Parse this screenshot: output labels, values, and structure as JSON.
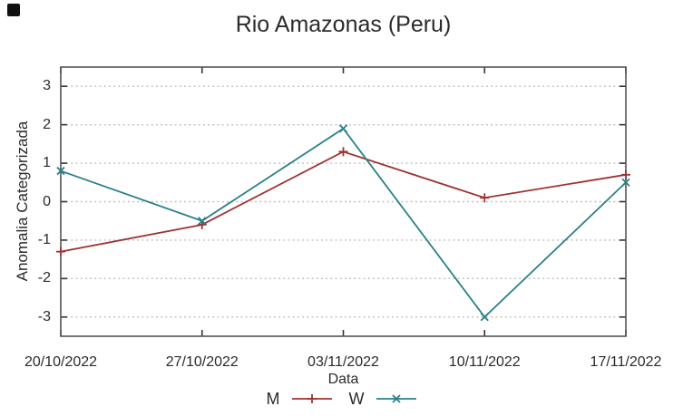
{
  "figure": {
    "background": "#ffffff",
    "corner_dot_color": "#111111"
  },
  "chart_data": {
    "type": "line",
    "title": "Rio Amazonas (Peru)",
    "xlabel": "Data",
    "ylabel": "Anomalia Categorizada",
    "categories": [
      "20/10/2022",
      "27/10/2022",
      "03/11/2022",
      "10/11/2022",
      "17/11/2022"
    ],
    "series": [
      {
        "name": "M",
        "marker": "plus",
        "color": "#a03232",
        "values": [
          -1.3,
          -0.6,
          1.3,
          0.1,
          0.7
        ]
      },
      {
        "name": "W",
        "marker": "cross",
        "color": "#2a8088",
        "values": [
          0.8,
          -0.5,
          1.9,
          -3.0,
          0.5
        ]
      }
    ],
    "ylim": [
      -3.5,
      3.5
    ],
    "yticks": [
      3,
      2,
      1,
      0,
      -1,
      -2,
      -3
    ],
    "grid": true,
    "grid_style": "dotted",
    "legend_position": "below-center",
    "axis_color": "#555555",
    "tick_color": "#333333",
    "grid_color": "#b9b9b9",
    "text_color": "#2b2b2b"
  }
}
